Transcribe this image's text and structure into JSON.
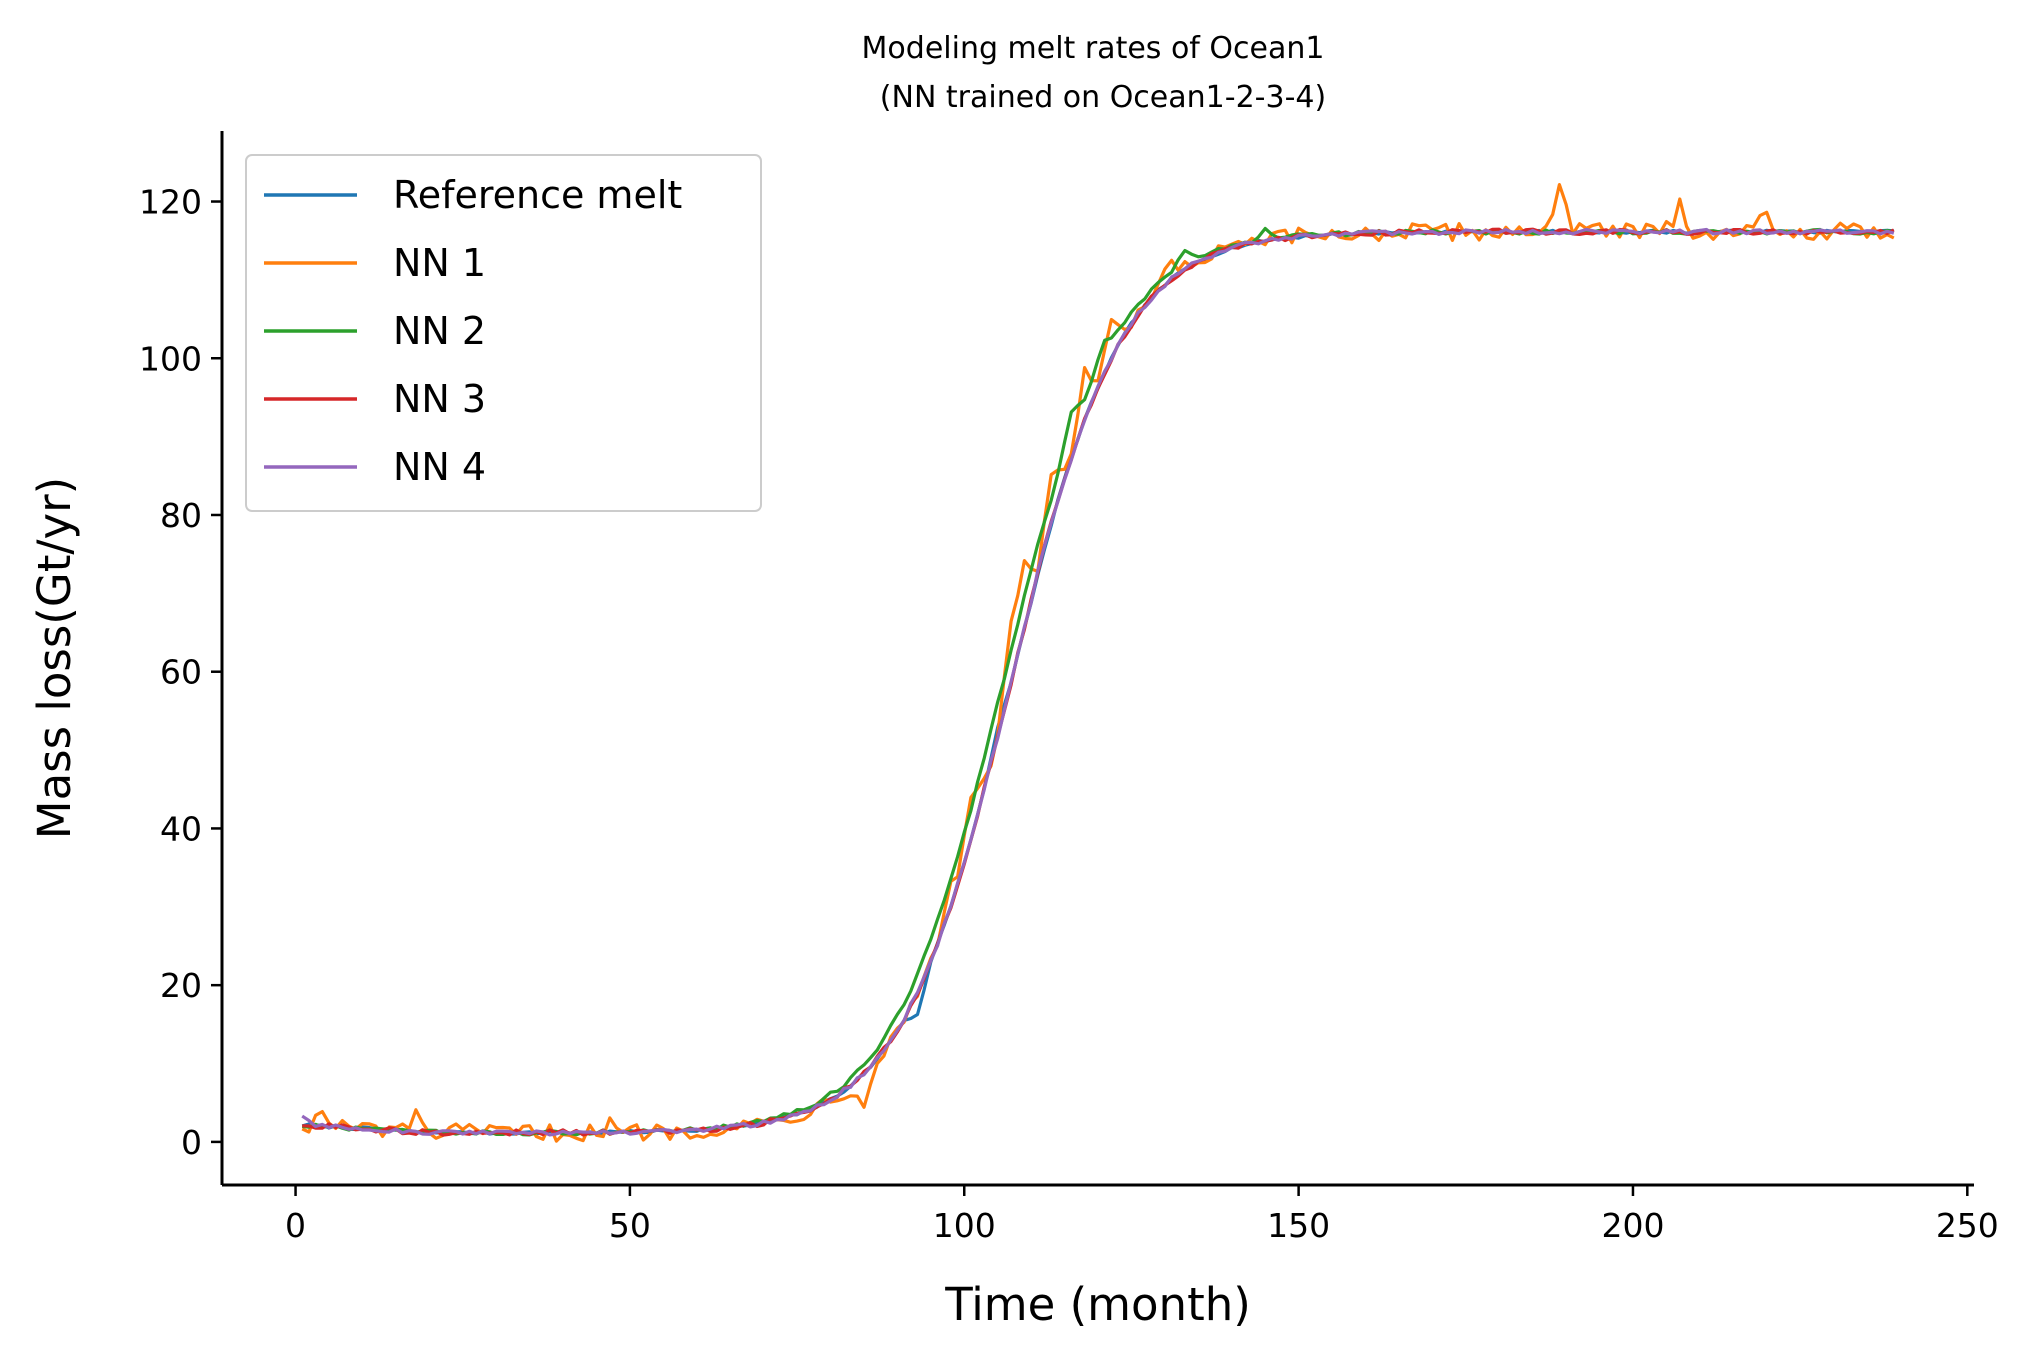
{
  "chart_data": {
    "type": "line",
    "title": "Modeling melt rates of Ocean1",
    "subtitle": "(NN trained on Ocean1-2-3-4)",
    "xlabel": "Time (month)",
    "ylabel": "Mass loss(Gt/yr)",
    "xlim": [
      -11,
      251
    ],
    "ylim": [
      -5.5,
      129
    ],
    "xticks": [
      0,
      50,
      100,
      150,
      200,
      250
    ],
    "yticks": [
      0,
      20,
      40,
      60,
      80,
      100,
      120
    ],
    "grid": false,
    "legend_position": "top-left",
    "series": [
      {
        "name": "Reference melt",
        "color": "#1f77b4",
        "jitter": 0.2,
        "bumps": [
          [
            93,
            -3.0
          ],
          [
            105,
            1.0
          ],
          [
            115,
            0.5
          ]
        ]
      },
      {
        "name": "NN 1",
        "color": "#ff7f0e",
        "jitter": 1.1,
        "bumps": [
          [
            4,
            1.5
          ],
          [
            18,
            1.8
          ],
          [
            47,
            0.8
          ],
          [
            85,
            -3.5
          ],
          [
            98,
            3.0
          ],
          [
            101,
            6.0
          ],
          [
            107,
            6.5
          ],
          [
            109,
            9.0
          ],
          [
            113,
            7.0
          ],
          [
            118,
            6.5
          ],
          [
            122,
            4.0
          ],
          [
            131,
            2.0
          ],
          [
            189,
            6.5
          ],
          [
            207,
            3.5
          ],
          [
            220,
            2.5
          ]
        ]
      },
      {
        "name": "NN 2",
        "color": "#2ca02c",
        "jitter": 0.3,
        "shift": 1.2,
        "bumps": [
          [
            116,
            3.0
          ],
          [
            121,
            2.0
          ],
          [
            133,
            2.0
          ],
          [
            145,
            1.5
          ]
        ]
      },
      {
        "name": "NN 3",
        "color": "#d62728",
        "jitter": 0.35,
        "bumps": [
          [
            112,
            0.8
          ]
        ]
      },
      {
        "name": "NN 4",
        "color": "#9467bd",
        "jitter": 0.3,
        "bumps": [
          [
            1,
            1.2
          ],
          [
            112,
            0.8
          ]
        ]
      }
    ]
  }
}
